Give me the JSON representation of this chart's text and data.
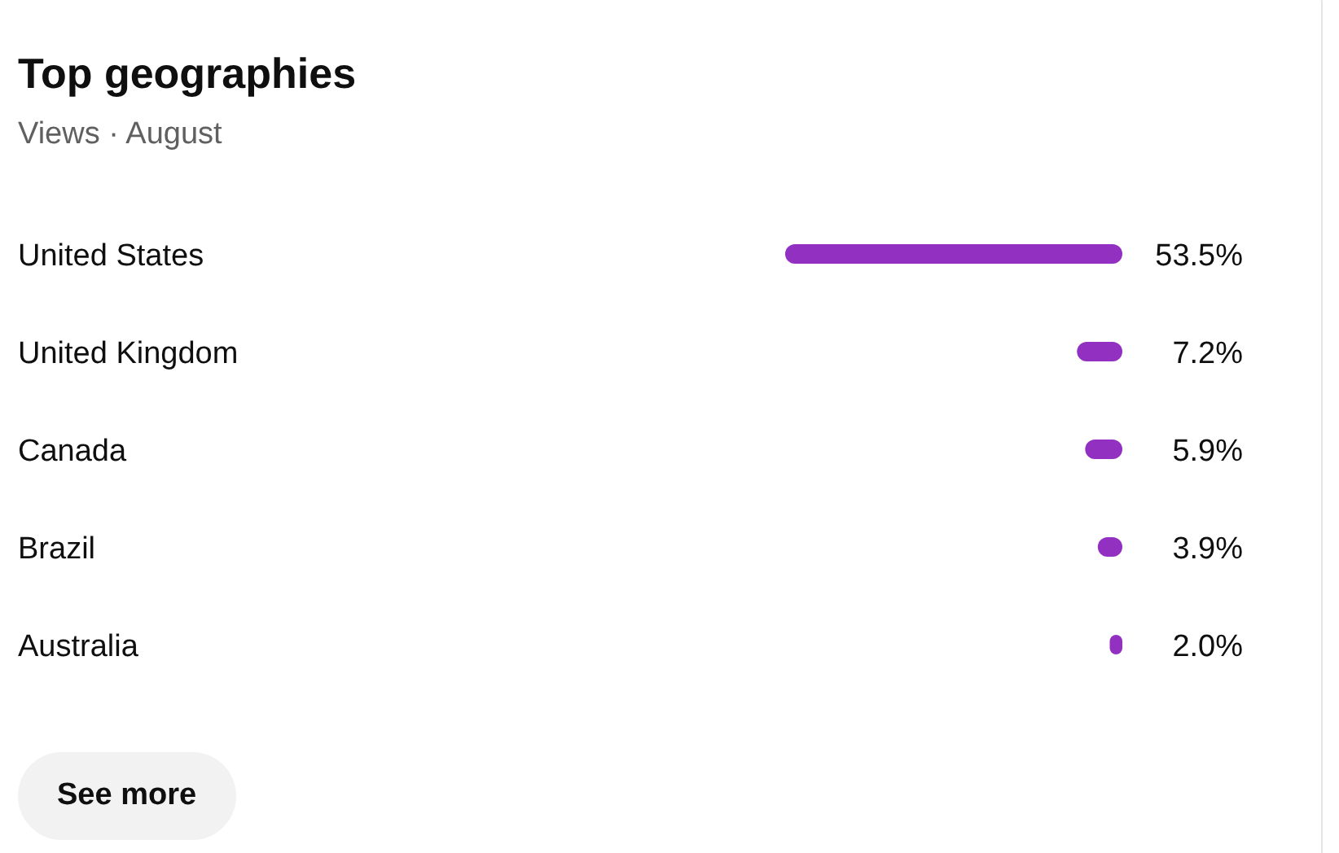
{
  "chart_data": {
    "type": "bar",
    "orientation": "horizontal",
    "title": "Top geographies",
    "subtitle": "Views · August",
    "categories": [
      "United States",
      "United Kingdom",
      "Canada",
      "Brazil",
      "Australia"
    ],
    "values": [
      53.5,
      7.2,
      5.9,
      3.9,
      2.0
    ],
    "value_labels": [
      "53.5%",
      "7.2%",
      "5.9%",
      "3.9%",
      "2.0%"
    ],
    "color": "#9231c1",
    "annotations": [
      "See more"
    ]
  }
}
